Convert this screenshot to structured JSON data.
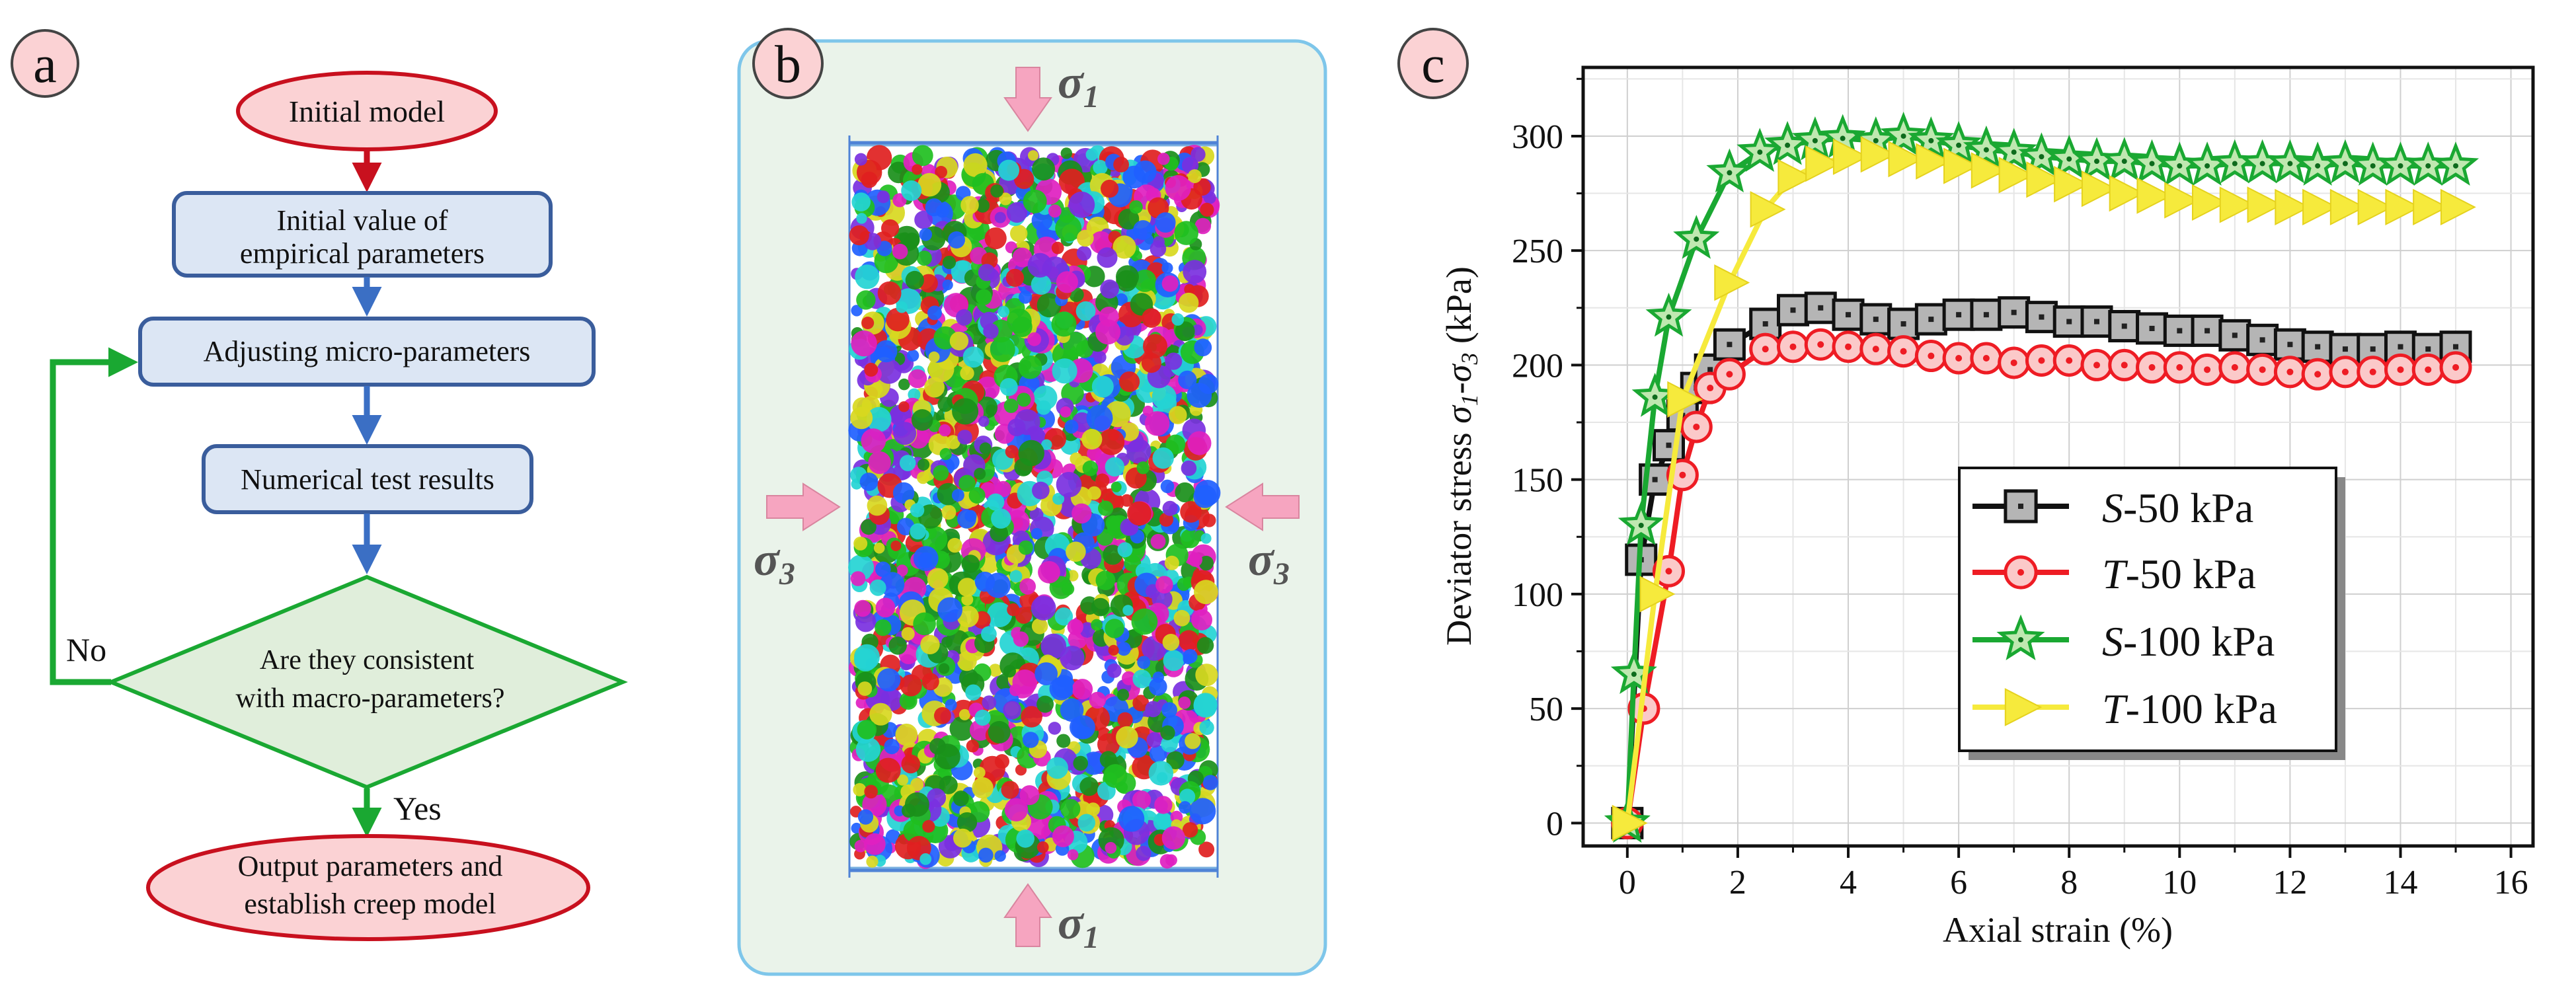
{
  "panel_a": {
    "label": "a",
    "start": "Initial model",
    "step1_line1": "Initial value of",
    "step1_line2": "empirical parameters",
    "step2": "Adjusting micro-parameters",
    "step3": "Numerical test results",
    "decision_line1": "Are they consistent",
    "decision_line2": "with macro-parameters?",
    "no_label": "No",
    "yes_label": "Yes",
    "end_line1": "Output parameters and",
    "end_line2": "establish creep model"
  },
  "panel_b": {
    "label": "b",
    "sigma1_symbol": "σ",
    "sigma1_sub": "1",
    "sigma3_symbol": "σ",
    "sigma3_sub": "3"
  },
  "panel_c": {
    "label": "c"
  },
  "colors": {
    "accent_red": "#c8101e",
    "accent_blue": "#3b6fc4",
    "accent_green": "#1aa832",
    "box_fill": "#dce6f4",
    "ellipse_fill": "#fbd2d4",
    "diamond_fill": "#e0eedb",
    "panel_b_fill": "#eaf3ea",
    "panel_b_border": "#7ec6ea"
  },
  "chart_data": {
    "type": "line",
    "title": "",
    "xlabel": "Axial strain (%)",
    "ylabel_prefix": "Deviator stress ",
    "ylabel_sym1": "σ",
    "ylabel_sub1": "1",
    "ylabel_dash": "-",
    "ylabel_sym2": "σ",
    "ylabel_sub2": "3",
    "ylabel_suffix": " (kPa)",
    "xlim": [
      -0.8,
      16.4
    ],
    "ylim": [
      -10,
      330
    ],
    "xticks": [
      "0",
      "2",
      "4",
      "6",
      "8",
      "10",
      "12",
      "14",
      "16"
    ],
    "yticks": [
      "0",
      "50",
      "100",
      "150",
      "200",
      "250",
      "300"
    ],
    "legend_position": "center-right",
    "series": [
      {
        "name_italic": "S",
        "name_rest": "-50 kPa",
        "color": "#111111",
        "marker": "square",
        "x": [
          0,
          0.25,
          0.5,
          0.75,
          1.0,
          1.25,
          1.5,
          1.85,
          2.5,
          3.0,
          3.5,
          4.0,
          4.5,
          5.0,
          5.5,
          6.0,
          6.5,
          7.0,
          7.5,
          8.0,
          8.5,
          9.0,
          9.5,
          10.0,
          10.5,
          11.0,
          11.5,
          12.0,
          12.5,
          13.0,
          13.5,
          14.0,
          14.5,
          15.0
        ],
        "y": [
          0,
          115,
          150,
          165,
          178,
          190,
          198,
          209,
          218,
          224,
          225,
          222,
          220,
          218,
          220,
          222,
          222,
          223,
          221,
          219,
          219,
          217,
          216,
          215,
          215,
          213,
          211,
          209,
          208,
          207,
          207,
          208,
          207,
          208
        ]
      },
      {
        "name_italic": "T",
        "name_rest": "-50 kPa",
        "color": "#ee1c24",
        "marker": "circle",
        "x": [
          0,
          0.3,
          0.75,
          1.0,
          1.25,
          1.5,
          1.85,
          2.5,
          3.0,
          3.5,
          4.0,
          4.5,
          5.0,
          5.5,
          6.0,
          6.5,
          7.0,
          7.5,
          8.0,
          8.5,
          9.0,
          9.5,
          10.0,
          10.5,
          11.0,
          11.5,
          12.0,
          12.5,
          13.0,
          13.5,
          14.0,
          14.5,
          15.0
        ],
        "y": [
          0,
          50,
          110,
          152,
          173,
          190,
          196,
          207,
          208,
          209,
          208,
          207,
          206,
          204,
          203,
          203,
          201,
          202,
          202,
          200,
          200,
          199,
          199,
          198,
          199,
          198,
          197,
          196,
          197,
          197,
          198,
          198,
          199
        ]
      },
      {
        "name_italic": "S",
        "name_rest": "-100 kPa",
        "color": "#1aa832",
        "marker": "star",
        "x": [
          0,
          0.12,
          0.25,
          0.5,
          0.75,
          1.25,
          1.85,
          2.4,
          2.9,
          3.4,
          3.9,
          4.5,
          5.0,
          5.5,
          6.0,
          6.5,
          7.0,
          7.5,
          8.0,
          8.5,
          9.0,
          9.5,
          10.0,
          10.5,
          11.0,
          11.5,
          12.0,
          12.5,
          13.0,
          13.5,
          14.0,
          14.5,
          15.0
        ],
        "y": [
          0,
          65,
          130,
          186,
          221,
          255,
          284,
          293,
          296,
          298,
          299,
          298,
          300,
          298,
          296,
          294,
          293,
          291,
          290,
          289,
          289,
          288,
          287,
          287,
          288,
          288,
          288,
          287,
          288,
          287,
          287,
          287,
          287
        ]
      },
      {
        "name_italic": "T",
        "name_rest": "-100 kPa",
        "color": "#f6ea3c",
        "marker": "triangle",
        "x": [
          0,
          0.5,
          1.0,
          1.85,
          2.5,
          3.0,
          3.5,
          4.0,
          4.5,
          5.0,
          5.5,
          6.0,
          6.5,
          7.0,
          7.5,
          8.0,
          8.5,
          9.0,
          9.5,
          10.0,
          10.5,
          11.0,
          11.5,
          12.0,
          12.5,
          13.0,
          13.5,
          14.0,
          14.5,
          15.0
        ],
        "y": [
          0,
          100,
          185,
          236,
          268,
          282,
          288,
          291,
          292,
          290,
          289,
          287,
          285,
          283,
          281,
          279,
          277,
          275,
          274,
          272,
          271,
          270,
          270,
          269,
          269,
          269,
          269,
          269,
          269,
          269
        ]
      }
    ]
  }
}
